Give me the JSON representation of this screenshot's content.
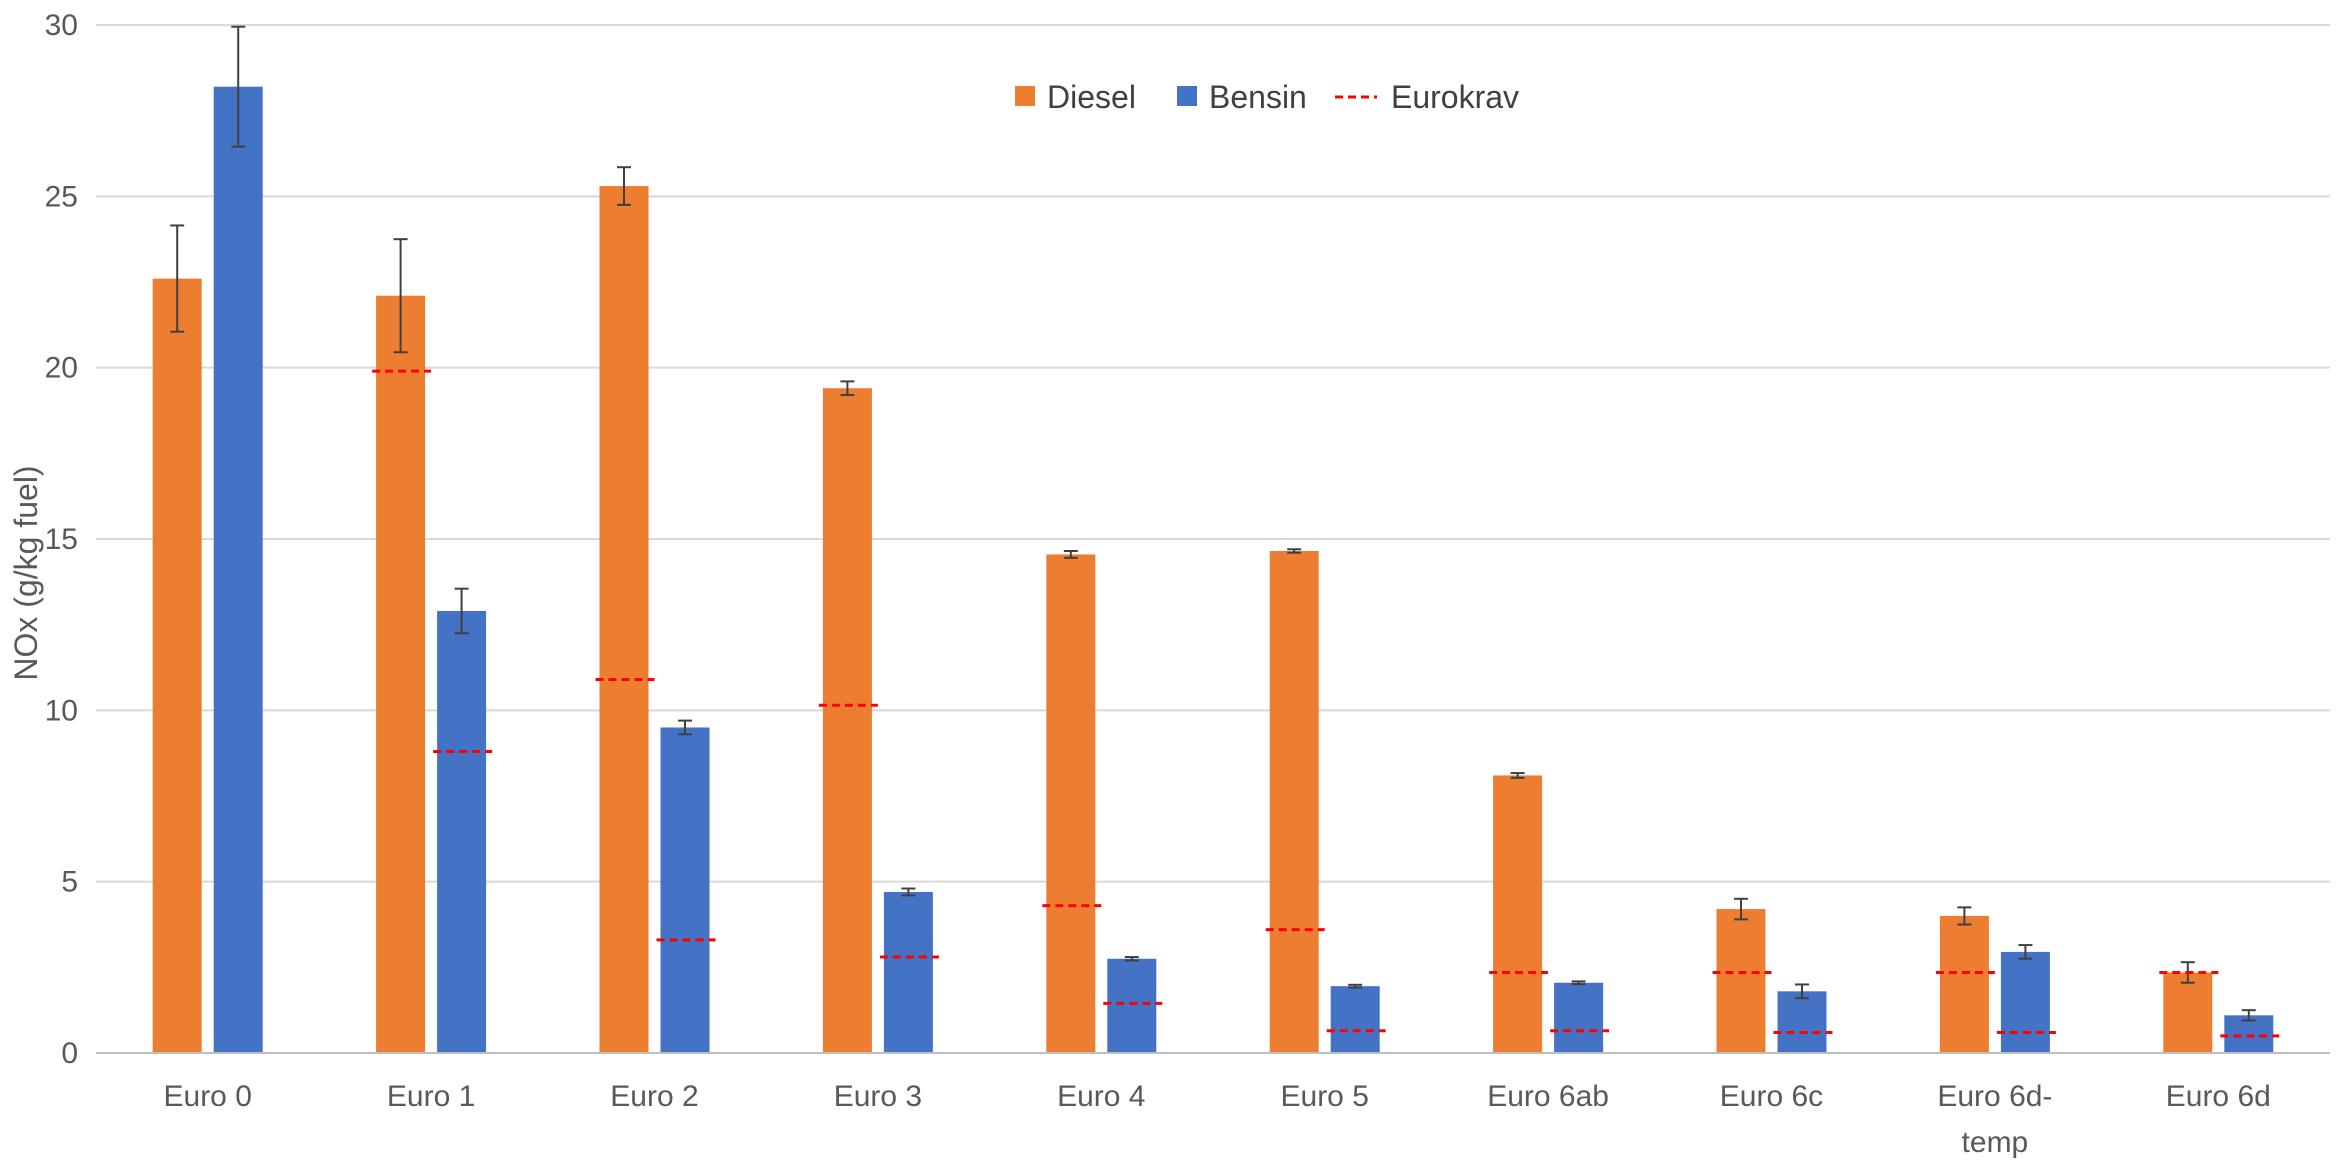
{
  "chart_data": {
    "type": "bar",
    "title": "",
    "xlabel": "",
    "ylabel": "NOx (g/kg fuel)",
    "ylim": [
      0,
      30
    ],
    "yticks": [
      0,
      5,
      10,
      15,
      20,
      25,
      30
    ],
    "grid": true,
    "legend_position": "top-center",
    "categories": [
      "Euro 0",
      "Euro 1",
      "Euro 2",
      "Euro 3",
      "Euro 4",
      "Euro 5",
      "Euro 6ab",
      "Euro 6c",
      "Euro 6d-temp",
      "Euro 6d"
    ],
    "category_lines": [
      [
        "Euro 0"
      ],
      [
        "Euro 1"
      ],
      [
        "Euro 2"
      ],
      [
        "Euro 3"
      ],
      [
        "Euro 4"
      ],
      [
        "Euro 5"
      ],
      [
        "Euro 6ab"
      ],
      [
        "Euro 6c"
      ],
      [
        "Euro 6d-",
        "temp"
      ],
      [
        "Euro 6d"
      ]
    ],
    "series": [
      {
        "name": "Diesel",
        "color": "#ED7D31",
        "values": [
          22.6,
          22.1,
          25.3,
          19.4,
          14.55,
          14.65,
          8.1,
          4.2,
          4.0,
          2.35
        ],
        "error": [
          1.55,
          1.65,
          0.55,
          0.2,
          0.1,
          0.05,
          0.07,
          0.3,
          0.25,
          0.3
        ],
        "limits": [
          null,
          19.9,
          10.9,
          10.15,
          4.3,
          3.6,
          2.35,
          2.35,
          2.35,
          2.35
        ]
      },
      {
        "name": "Bensin",
        "color": "#4472C4",
        "values": [
          28.2,
          12.9,
          9.5,
          4.7,
          2.75,
          1.95,
          2.05,
          1.8,
          2.95,
          1.1
        ],
        "error": [
          1.75,
          0.65,
          0.2,
          0.1,
          0.05,
          0.04,
          0.04,
          0.2,
          0.2,
          0.15
        ],
        "limits": [
          null,
          8.8,
          3.3,
          2.8,
          1.45,
          0.65,
          0.65,
          0.6,
          0.6,
          0.5
        ]
      }
    ],
    "legend": [
      {
        "label": "Diesel",
        "kind": "box",
        "color": "#ED7D31"
      },
      {
        "label": "Bensin",
        "kind": "box",
        "color": "#4472C4"
      },
      {
        "label": "Eurokrav",
        "kind": "dash",
        "color": "#FF0000"
      }
    ]
  }
}
